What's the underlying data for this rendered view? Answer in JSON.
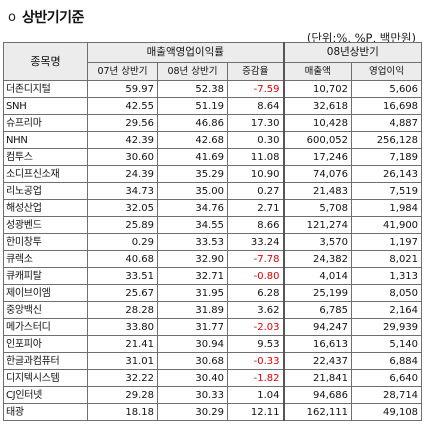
{
  "header": {
    "bullet": "o",
    "title": "상반기기준",
    "unit_note": "(단위:%, %P, 백만원)"
  },
  "table": {
    "company_header": "종목명",
    "group_margin": "매출액영업이익률",
    "group_2008": "08년상반기",
    "sub_headers": [
      "07년 상반기",
      "08년 상반기",
      "증감율",
      "매출액",
      "영업이익"
    ],
    "rows": [
      {
        "name": "더존디지털",
        "h07": "59.97",
        "h08": "52.38",
        "change": "-7.59",
        "sales": "10,702",
        "op": "5,606",
        "neg": true
      },
      {
        "name": "SNH",
        "h07": "42.55",
        "h08": "51.19",
        "change": "8.64",
        "sales": "32,618",
        "op": "16,698",
        "neg": false
      },
      {
        "name": "슈프리마",
        "h07": "29.56",
        "h08": "46.86",
        "change": "17.30",
        "sales": "10,428",
        "op": "4,887",
        "neg": false
      },
      {
        "name": "NHN",
        "h07": "42.39",
        "h08": "42.68",
        "change": "0.30",
        "sales": "600,052",
        "op": "256,128",
        "neg": false
      },
      {
        "name": "컴투스",
        "h07": "30.60",
        "h08": "41.69",
        "change": "11.08",
        "sales": "17,246",
        "op": "7,189",
        "neg": false
      },
      {
        "name": "소디프신소재",
        "h07": "24.39",
        "h08": "35.29",
        "change": "10.90",
        "sales": "74,076",
        "op": "26,143",
        "neg": false
      },
      {
        "name": "리노공업",
        "h07": "34.73",
        "h08": "35.00",
        "change": "0.27",
        "sales": "21,483",
        "op": "7,519",
        "neg": false
      },
      {
        "name": "해성산업",
        "h07": "32.05",
        "h08": "34.76",
        "change": "2.71",
        "sales": "5,708",
        "op": "1,984",
        "neg": false
      },
      {
        "name": "성광벤드",
        "h07": "25.89",
        "h08": "34.55",
        "change": "8.66",
        "sales": "121,274",
        "op": "41,900",
        "neg": false
      },
      {
        "name": "한미창투",
        "h07": "0.29",
        "h08": "33.53",
        "change": "33.24",
        "sales": "3,570",
        "op": "1,197",
        "neg": false
      },
      {
        "name": "큐렉소",
        "h07": "40.68",
        "h08": "32.90",
        "change": "-7.78",
        "sales": "24,382",
        "op": "8,021",
        "neg": true
      },
      {
        "name": "큐캐피탈",
        "h07": "33.51",
        "h08": "32.71",
        "change": "-0.80",
        "sales": "4,014",
        "op": "1,313",
        "neg": true
      },
      {
        "name": "제이브이엠",
        "h07": "25.67",
        "h08": "31.95",
        "change": "6.28",
        "sales": "25,199",
        "op": "8,050",
        "neg": false
      },
      {
        "name": "중앙백신",
        "h07": "28.28",
        "h08": "31.89",
        "change": "3.62",
        "sales": "6,785",
        "op": "2,164",
        "neg": false
      },
      {
        "name": "메가스터디",
        "h07": "33.80",
        "h08": "31.77",
        "change": "-2.03",
        "sales": "94,247",
        "op": "29,939",
        "neg": true
      },
      {
        "name": "인포피아",
        "h07": "21.41",
        "h08": "30.94",
        "change": "9.53",
        "sales": "16,613",
        "op": "5,140",
        "neg": false
      },
      {
        "name": "한글과컴퓨터",
        "h07": "31.01",
        "h08": "30.68",
        "change": "-0.33",
        "sales": "22,437",
        "op": "6,884",
        "neg": true
      },
      {
        "name": "디지텍시스템",
        "h07": "32.22",
        "h08": "30.40",
        "change": "-1.82",
        "sales": "21,841",
        "op": "6,640",
        "neg": true
      },
      {
        "name": "CJ인터넷",
        "h07": "29.28",
        "h08": "30.33",
        "change": "1.04",
        "sales": "94,686",
        "op": "28,714",
        "neg": false
      },
      {
        "name": "태광",
        "h07": "18.18",
        "h08": "30.29",
        "change": "12.11",
        "sales": "162,111",
        "op": "49,108",
        "neg": false
      }
    ]
  },
  "colors": {
    "negative": "#e00000",
    "header_bg": "#ececec",
    "border": "#6f6f6f"
  }
}
